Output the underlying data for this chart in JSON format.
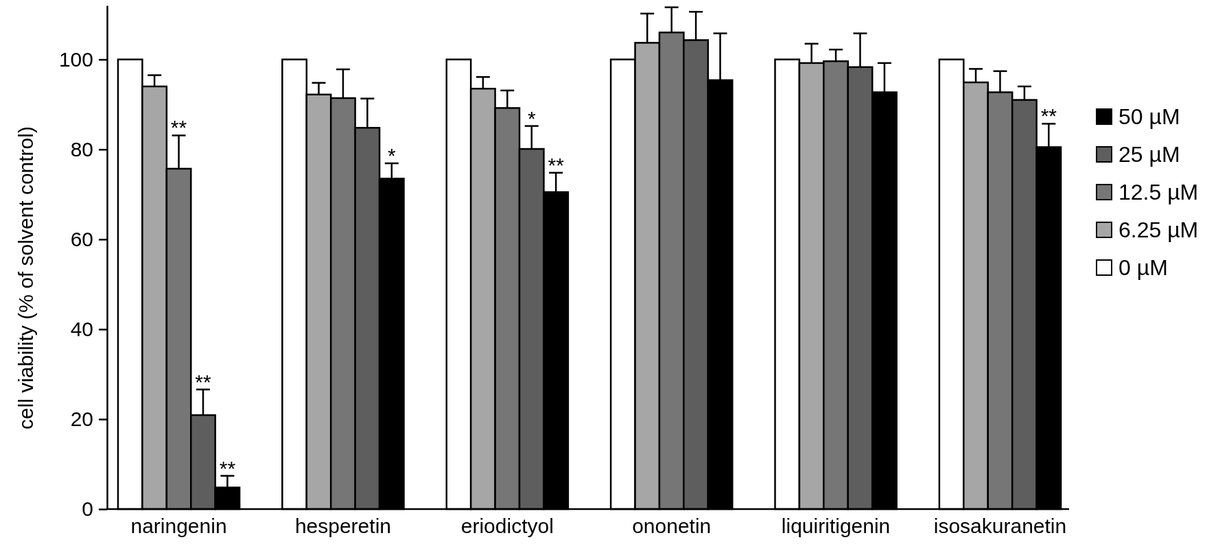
{
  "chart_data": {
    "type": "bar",
    "ylabel": "cell viability (% of solvent control)",
    "categories": [
      "naringenin",
      "hesperetin",
      "eriodictyol",
      "ononetin",
      "liquiritigenin",
      "isosakuranetin"
    ],
    "series": [
      {
        "name": "0 µM",
        "color": "#ffffff",
        "values": [
          100,
          100,
          100,
          100,
          100,
          100
        ]
      },
      {
        "name": "6.25 µM",
        "color": "#a6a6a6",
        "values": [
          94,
          92.2,
          93.5,
          103.7,
          99.2,
          94.9
        ],
        "errors": [
          2.5,
          2.6,
          2.6,
          6.5,
          4.3,
          3
        ]
      },
      {
        "name": "12.5 µM",
        "color": "#767676",
        "values": [
          75.7,
          91.4,
          89.2,
          106,
          99.6,
          92.7
        ],
        "errors": [
          7.4,
          6.4,
          3.9,
          5.6,
          2.6,
          4.7
        ],
        "value_labels": [
          "**",
          null,
          null,
          null,
          null,
          null
        ]
      },
      {
        "name": "25 µM",
        "color": "#5e5e5e",
        "values": [
          20.9,
          84.8,
          80.1,
          104.3,
          98.3,
          91
        ],
        "errors": [
          5.7,
          6.5,
          5.1,
          6.3,
          7.5,
          3
        ],
        "value_labels": [
          "**",
          null,
          "*",
          null,
          null,
          null
        ]
      },
      {
        "name": "50 µM",
        "color": "#000000",
        "values": [
          4.8,
          73.5,
          70.5,
          95.4,
          92.7,
          80.5
        ],
        "errors": [
          2.6,
          3.4,
          4.3,
          10.4,
          6.5,
          5.2
        ],
        "value_labels": [
          "**",
          "*",
          "**",
          null,
          null,
          "**"
        ]
      }
    ],
    "ylim": [
      0,
      112
    ],
    "yticks": [
      0,
      20,
      40,
      60,
      80,
      100
    ],
    "grid": false,
    "legend": "right"
  }
}
